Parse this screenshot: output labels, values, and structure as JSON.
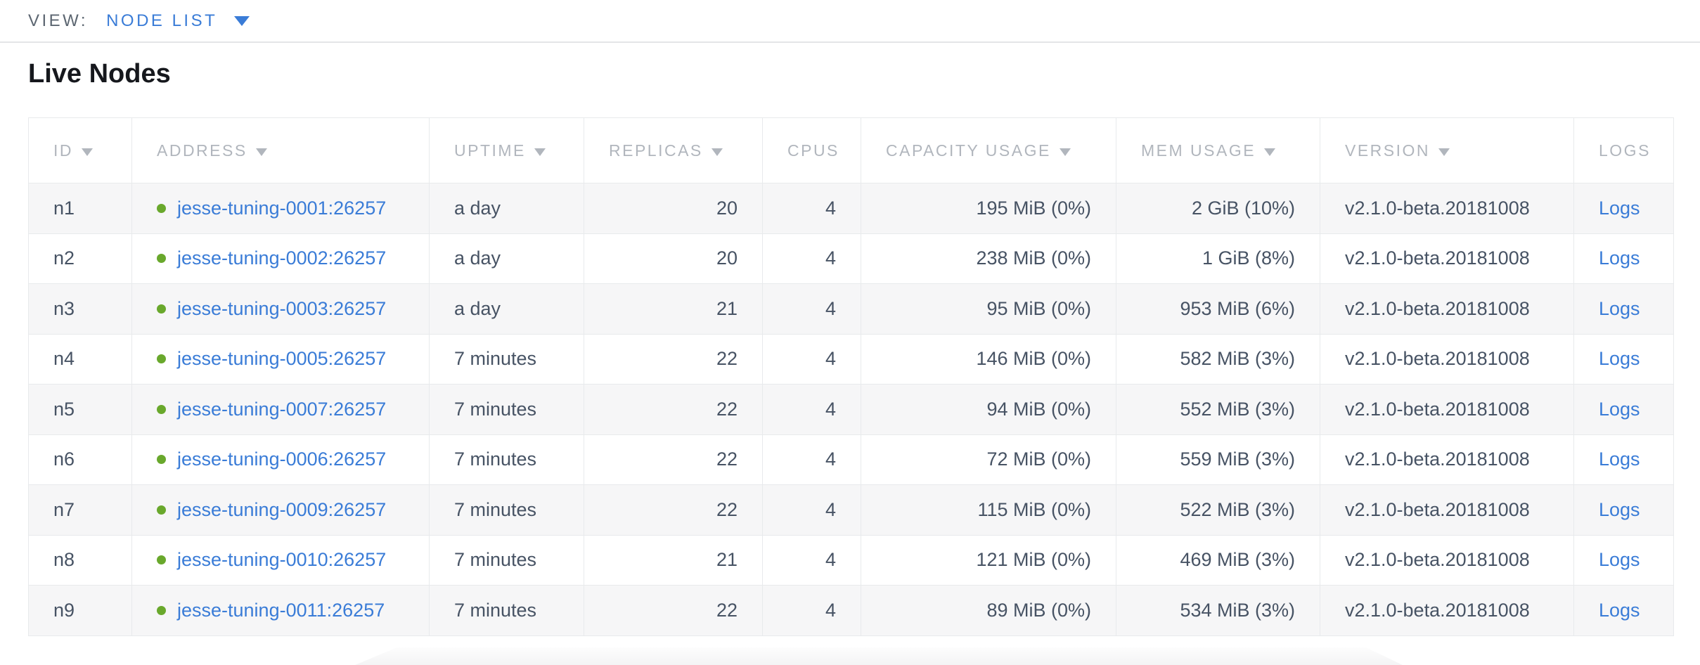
{
  "toolbar": {
    "view_label": "VIEW:",
    "view_value": "NODE LIST"
  },
  "page": {
    "title": "Live Nodes"
  },
  "table": {
    "columns": [
      {
        "key": "id",
        "label": "ID",
        "sortable": true
      },
      {
        "key": "address",
        "label": "ADDRESS",
        "sortable": true
      },
      {
        "key": "uptime",
        "label": "UPTIME",
        "sortable": true
      },
      {
        "key": "replicas",
        "label": "REPLICAS",
        "sortable": true
      },
      {
        "key": "cpus",
        "label": "CPUS",
        "sortable": false
      },
      {
        "key": "capacity",
        "label": "CAPACITY USAGE",
        "sortable": true
      },
      {
        "key": "mem",
        "label": "MEM USAGE",
        "sortable": true
      },
      {
        "key": "version",
        "label": "VERSION",
        "sortable": true
      },
      {
        "key": "logs",
        "label": "LOGS",
        "sortable": false
      }
    ],
    "rows": [
      {
        "id": "n1",
        "address": "jesse-tuning-0001:26257",
        "uptime": "a day",
        "replicas": "20",
        "cpus": "4",
        "capacity": "195 MiB (0%)",
        "mem": "2 GiB (10%)",
        "version": "v2.1.0-beta.20181008",
        "logs": "Logs"
      },
      {
        "id": "n2",
        "address": "jesse-tuning-0002:26257",
        "uptime": "a day",
        "replicas": "20",
        "cpus": "4",
        "capacity": "238 MiB (0%)",
        "mem": "1 GiB (8%)",
        "version": "v2.1.0-beta.20181008",
        "logs": "Logs"
      },
      {
        "id": "n3",
        "address": "jesse-tuning-0003:26257",
        "uptime": "a day",
        "replicas": "21",
        "cpus": "4",
        "capacity": "95 MiB (0%)",
        "mem": "953 MiB (6%)",
        "version": "v2.1.0-beta.20181008",
        "logs": "Logs"
      },
      {
        "id": "n4",
        "address": "jesse-tuning-0005:26257",
        "uptime": "7 minutes",
        "replicas": "22",
        "cpus": "4",
        "capacity": "146 MiB (0%)",
        "mem": "582 MiB (3%)",
        "version": "v2.1.0-beta.20181008",
        "logs": "Logs"
      },
      {
        "id": "n5",
        "address": "jesse-tuning-0007:26257",
        "uptime": "7 minutes",
        "replicas": "22",
        "cpus": "4",
        "capacity": "94 MiB (0%)",
        "mem": "552 MiB (3%)",
        "version": "v2.1.0-beta.20181008",
        "logs": "Logs"
      },
      {
        "id": "n6",
        "address": "jesse-tuning-0006:26257",
        "uptime": "7 minutes",
        "replicas": "22",
        "cpus": "4",
        "capacity": "72 MiB (0%)",
        "mem": "559 MiB (3%)",
        "version": "v2.1.0-beta.20181008",
        "logs": "Logs"
      },
      {
        "id": "n7",
        "address": "jesse-tuning-0009:26257",
        "uptime": "7 minutes",
        "replicas": "22",
        "cpus": "4",
        "capacity": "115 MiB (0%)",
        "mem": "522 MiB (3%)",
        "version": "v2.1.0-beta.20181008",
        "logs": "Logs"
      },
      {
        "id": "n8",
        "address": "jesse-tuning-0010:26257",
        "uptime": "7 minutes",
        "replicas": "21",
        "cpus": "4",
        "capacity": "121 MiB (0%)",
        "mem": "469 MiB (3%)",
        "version": "v2.1.0-beta.20181008",
        "logs": "Logs"
      },
      {
        "id": "n9",
        "address": "jesse-tuning-0011:26257",
        "uptime": "7 minutes",
        "replicas": "22",
        "cpus": "4",
        "capacity": "89 MiB (0%)",
        "mem": "534 MiB (3%)",
        "version": "v2.1.0-beta.20181008",
        "logs": "Logs"
      }
    ]
  },
  "icons": {
    "view_caret": "chevron-down-icon",
    "header_sort": "sort-desc-icon",
    "node_status": "node-live-status-icon"
  },
  "colors": {
    "accent-blue": "#3a7cd7",
    "link": "#3a7cd7",
    "live-dot": "#69a82c",
    "header-text": "#b1b6bd",
    "body-text": "#475364",
    "row-alt": "#f6f6f7",
    "border": "#e8eaec",
    "title-text": "#16181d",
    "toolbar-label": "#5c6671"
  }
}
